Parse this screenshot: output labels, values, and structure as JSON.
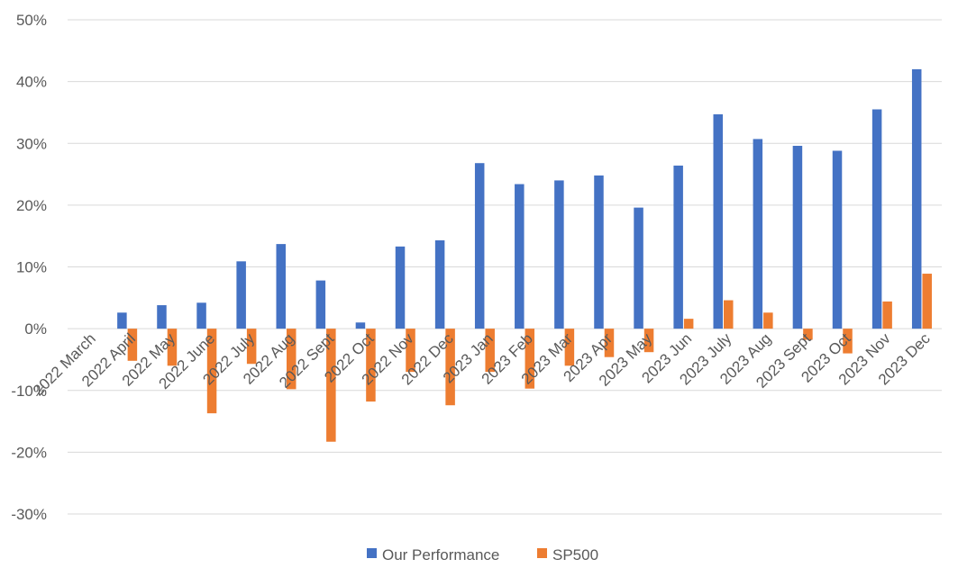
{
  "chart_data": {
    "type": "bar",
    "title": "",
    "xlabel": "",
    "ylabel": "",
    "ylim": [
      -0.3,
      0.5
    ],
    "yticks": [
      {
        "value": 0.5,
        "label": "50%"
      },
      {
        "value": 0.4,
        "label": "40%"
      },
      {
        "value": 0.3,
        "label": "30%"
      },
      {
        "value": 0.2,
        "label": "20%"
      },
      {
        "value": 0.1,
        "label": "10%"
      },
      {
        "value": 0.0,
        "label": "0%"
      },
      {
        "value": -0.1,
        "label": "-10%"
      },
      {
        "value": -0.2,
        "label": "-20%"
      },
      {
        "value": -0.3,
        "label": "-30%"
      }
    ],
    "grid": true,
    "legend_position": "bottom",
    "categories": [
      "2022 March",
      "2022 April",
      "2022 May",
      "2022 June",
      "2022 July",
      "2022 Aug",
      "2022 Sept",
      "2022 Oct",
      "2022 Nov",
      "2022 Dec",
      "2023 Jan",
      "2023 Feb",
      "2023 Mar",
      "2023 Apr",
      "2023 May",
      "2023 Jun",
      "2023 July",
      "2023 Aug",
      "2023 Sept",
      "2023 Oct",
      "2023 Nov",
      "2023 Dec"
    ],
    "series": [
      {
        "name": "Our Performance",
        "color": "#4472c4",
        "values": [
          0.0,
          0.026,
          0.038,
          0.042,
          0.109,
          0.137,
          0.078,
          0.01,
          0.133,
          0.143,
          0.268,
          0.234,
          0.24,
          0.248,
          0.196,
          0.264,
          0.347,
          0.307,
          0.296,
          0.288,
          0.355,
          0.42
        ]
      },
      {
        "name": "SP500",
        "color": "#ed7d31",
        "values": [
          0.0,
          -0.052,
          -0.06,
          -0.137,
          -0.057,
          -0.098,
          -0.183,
          -0.118,
          -0.07,
          -0.124,
          -0.07,
          -0.097,
          -0.06,
          -0.046,
          -0.038,
          0.016,
          0.046,
          0.026,
          -0.018,
          -0.04,
          0.044,
          0.089
        ]
      }
    ]
  }
}
